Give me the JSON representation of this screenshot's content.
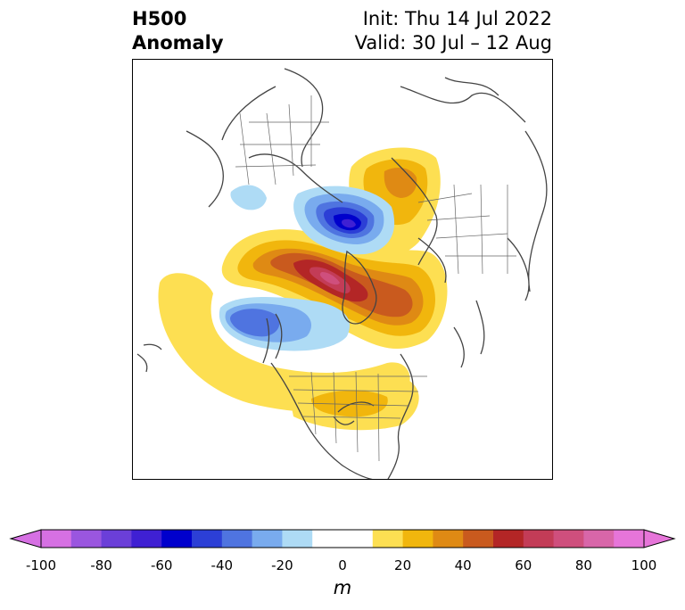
{
  "title": {
    "left_line1": "H500",
    "left_line2": "Anomaly",
    "right_line1": "Init: Thu 14 Jul 2022",
    "right_line2": "Valid: 30 Jul – 12 Aug"
  },
  "map": {
    "projection": "polar stereographic, North America / Arctic",
    "variable": "500 hPa geopotential height anomaly",
    "features": [
      {
        "name": "negative-anomaly-arctic",
        "sign": "negative",
        "peak_m": -70
      },
      {
        "name": "negative-anomaly-pacific",
        "sign": "negative",
        "peak_m": -50
      },
      {
        "name": "positive-anomaly-arctic-greenland",
        "sign": "positive",
        "peak_m": 70
      },
      {
        "name": "positive-anomaly-siberia",
        "sign": "positive",
        "peak_m": 30
      },
      {
        "name": "positive-anomaly-eastern-us",
        "sign": "positive",
        "peak_m": 20
      },
      {
        "name": "positive-anomaly-pacific-arc",
        "sign": "positive",
        "peak_m": 15
      }
    ]
  },
  "colorbar": {
    "unit": "m",
    "ticks": [
      "-100",
      "-80",
      "-60",
      "-40",
      "-20",
      "0",
      "20",
      "40",
      "60",
      "80",
      "100"
    ],
    "colors": [
      "#d670e3",
      "#9a56df",
      "#6b3fd8",
      "#3f20d3",
      "#0000cc",
      "#2c3fd6",
      "#4f74e0",
      "#79abee",
      "#aedbf5",
      "#ffffff",
      "#ffffff",
      "#fddf52",
      "#f1b60d",
      "#df8a14",
      "#c95a1e",
      "#b32626",
      "#c33c57",
      "#cf4f7d",
      "#d866a9",
      "#e675d9"
    ]
  }
}
